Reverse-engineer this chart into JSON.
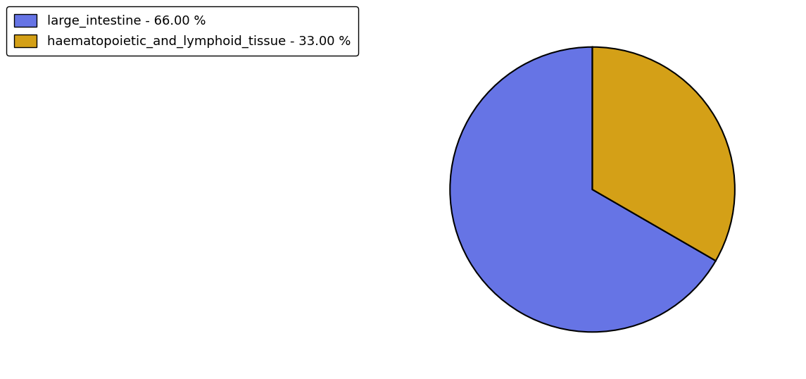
{
  "labels": [
    "large_intestine",
    "haematopoietic_and_lymphoid_tissue"
  ],
  "values": [
    66.0,
    33.0
  ],
  "colors": [
    "#6674e5",
    "#d4a017"
  ],
  "legend_labels": [
    "large_intestine - 66.00 %",
    "haematopoietic_and_lymphoid_tissue - 33.00 %"
  ],
  "startangle": 90,
  "background_color": "#ffffff",
  "edge_color": "#000000",
  "linewidth": 1.5,
  "legend_fontsize": 13,
  "counterclock": true
}
